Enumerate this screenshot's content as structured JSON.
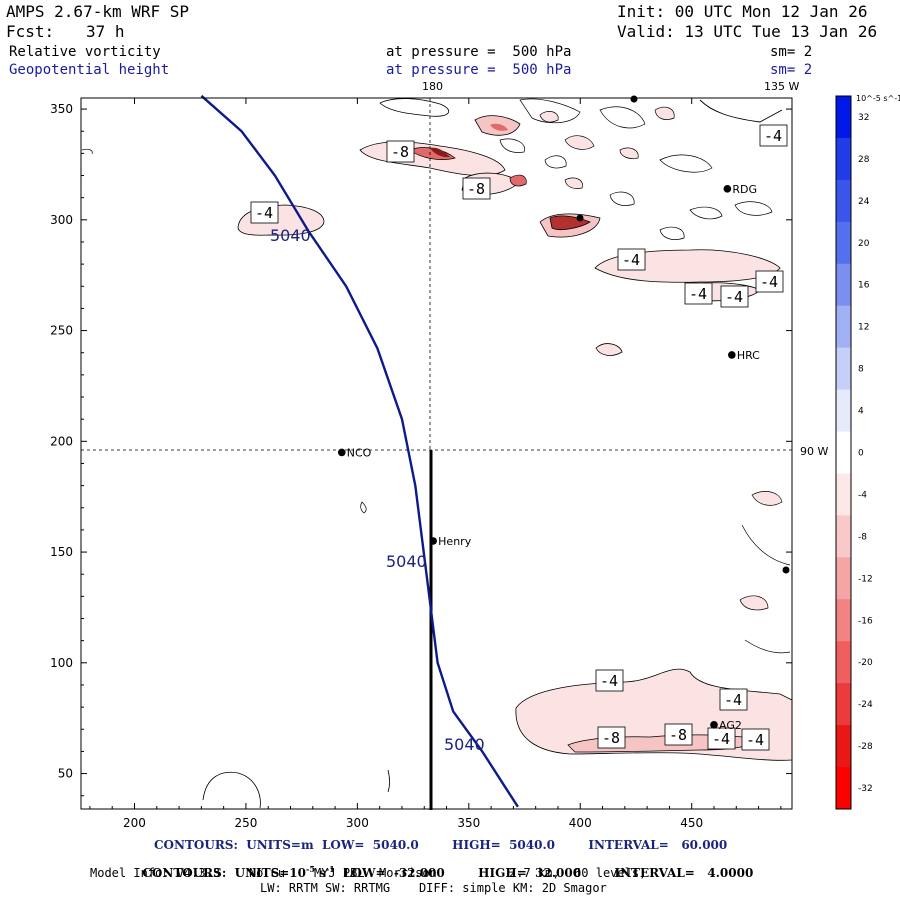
{
  "header": {
    "model": "AMPS 2.67-km WRF SP",
    "init": "Init: 00 UTC Mon 12 Jan 26",
    "fcst_label": "Fcst:",
    "fcst_value": "37 h",
    "valid": "Valid: 13 UTC Tue 13 Jan 26",
    "field1_name": "Relative vorticity",
    "field1_pressure": "at pressure =  500 hPa",
    "field1_sm": "sm= 2",
    "field2_name": "Geopotential height",
    "field2_pressure": "at pressure =  500 hPa",
    "field2_sm": "sm= 2"
  },
  "map": {
    "meridian_180": "180",
    "meridian_135w": "135 W",
    "meridian_90w": "90 W",
    "x_ticks": [
      200,
      250,
      300,
      350,
      400,
      450
    ],
    "y_ticks": [
      50,
      100,
      150,
      200,
      250,
      300,
      350
    ],
    "xlim": [
      176,
      495
    ],
    "ylim": [
      34,
      355
    ],
    "stations": [
      {
        "name": "NCO",
        "x": 293,
        "y": 195
      },
      {
        "name": "Henry",
        "x": 334,
        "y": 155
      },
      {
        "name": "RDG",
        "x": 466,
        "y": 314
      },
      {
        "name": "HRC",
        "x": 468,
        "y": 239
      },
      {
        "name": "AG2",
        "x": 460,
        "y": 72
      }
    ],
    "height_label": "5040",
    "height_contour": [
      [
        230,
        356
      ],
      [
        248,
        340
      ],
      [
        263,
        320
      ],
      [
        278,
        295
      ],
      [
        295,
        270
      ],
      [
        309,
        242
      ],
      [
        320,
        210
      ],
      [
        326,
        180
      ],
      [
        331,
        140
      ],
      [
        336,
        100
      ],
      [
        343,
        78
      ],
      [
        356,
        60
      ],
      [
        372,
        35
      ]
    ],
    "vorticity_labels": [
      "-4",
      "-8",
      "-8",
      "-4",
      "-4",
      "-4",
      "-4",
      "-4",
      "-4",
      "-4",
      "-8",
      "-8",
      "-4",
      "-4"
    ]
  },
  "colorbar": {
    "unit": "10^-5 s^-1",
    "levels": [
      32,
      28,
      24,
      20,
      16,
      12,
      8,
      4,
      0,
      -4,
      -8,
      -12,
      -16,
      -20,
      -24,
      -28,
      -32
    ],
    "colors": [
      "#0019e8",
      "#1f3ce8",
      "#3a56ea",
      "#5570ec",
      "#7b8ff0",
      "#a2b0f4",
      "#c6cff8",
      "#e6eafb",
      "#ffffff",
      "#fde8e8",
      "#f9c8c8",
      "#f5a5a5",
      "#f28383",
      "#ef5f5f",
      "#ec3b3b",
      "#ea1717",
      "#ff0000"
    ]
  },
  "footer": {
    "contours1": "CONTOURS:  UNITS=m  LOW=  5040.0        HIGH=  5040.0        INTERVAL=   60.000",
    "contours2_a": "CONTOURS:  UNITS=10",
    "contours2_b": " s",
    "contours2_c": "  LOW=  -32.000        HIGH=  32.000        INTERVAL=   4.0000",
    "model_info": "Model Info: V4.3.3    No Cu    MYJ PBL  Morrison          2.7 km,  60 levels,",
    "physics": "LW: RRTM SW: RRTMG    DIFF: simple KM: 2D Smagor"
  }
}
